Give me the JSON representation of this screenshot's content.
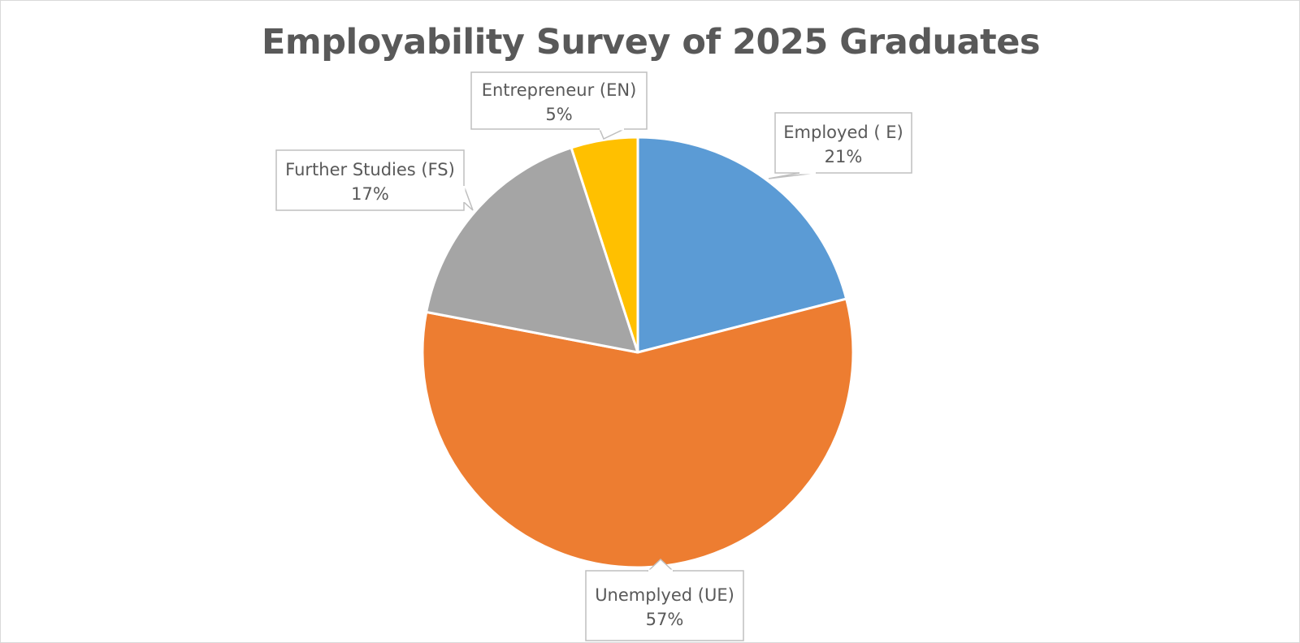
{
  "chart_data": {
    "type": "pie",
    "title": "Employability Survey of 2025 Graduates",
    "start_angle_deg": 0,
    "direction": "clockwise",
    "slices": [
      {
        "label": "Employed ( E)",
        "value": 21,
        "value_label": "21%",
        "color": "#5B9BD5"
      },
      {
        "label": "Unemplyed (UE)",
        "value": 57,
        "value_label": "57%",
        "color": "#ED7D31"
      },
      {
        "label": "Further Studies (FS)",
        "value": 17,
        "value_label": "17%",
        "color": "#A5A5A5"
      },
      {
        "label": "Entrepreneur (EN)",
        "value": 5,
        "value_label": "5%",
        "color": "#FFC000"
      }
    ],
    "legend": "none",
    "data_labels": "callouts"
  }
}
